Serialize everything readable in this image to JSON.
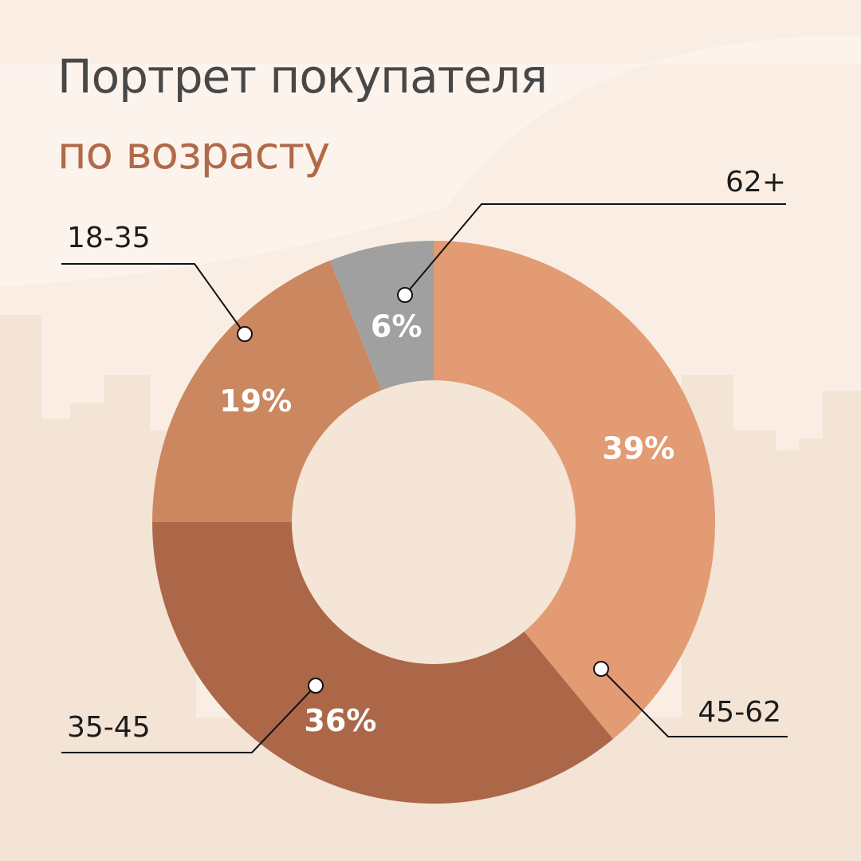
{
  "title": "Портрет покупателя",
  "subtitle": "по возрасту",
  "colors": {
    "title": "#474747",
    "subtitle": "#b06a48",
    "background_light": "#fcf3ed",
    "background_city": "#f3e4d6",
    "hole": "#f4e5d7"
  },
  "chart_data": {
    "type": "pie",
    "donut": true,
    "unit": "%",
    "categories": [
      "45-62",
      "35-45",
      "18-35",
      "62+"
    ],
    "values": [
      39,
      36,
      19,
      6
    ],
    "labels": [
      "39%",
      "36%",
      "19%",
      "6%"
    ],
    "colors": [
      "#e39b73",
      "#ab6748",
      "#cb875f",
      "#a0a0a0"
    ],
    "start": "12 o'clock",
    "direction": "clockwise",
    "legend": "callouts"
  }
}
